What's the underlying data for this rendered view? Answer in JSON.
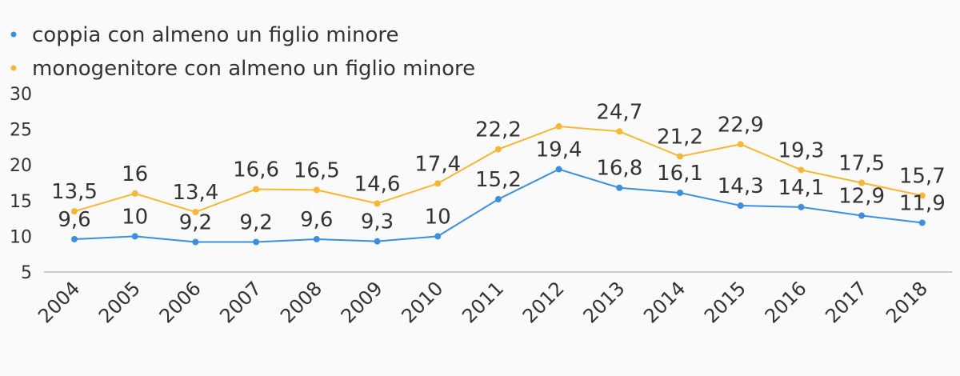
{
  "chart_data": {
    "type": "line",
    "categories": [
      "2004",
      "2005",
      "2006",
      "2007",
      "2008",
      "2009",
      "2010",
      "2011",
      "2012",
      "2013",
      "2014",
      "2015",
      "2016",
      "2017",
      "2018"
    ],
    "series": [
      {
        "name": "coppia con almeno un figlio minore",
        "color": "#3b8fe0",
        "values": [
          9.6,
          10,
          9.2,
          9.2,
          9.6,
          9.3,
          10,
          15.2,
          19.4,
          16.8,
          16.1,
          14.3,
          14.1,
          12.9,
          11.9
        ],
        "labels": [
          "9,6",
          "10",
          "9,2",
          "9,2",
          "9,6",
          "9,3",
          "10",
          "15,2",
          "19,4",
          "16,8",
          "16,1",
          "14,3",
          "14,1",
          "12,9",
          "11,9"
        ]
      },
      {
        "name": "monogenitore con almeno un figlio minore",
        "color": "#f7b733",
        "values": [
          13.5,
          16,
          13.4,
          16.6,
          16.5,
          14.6,
          17.4,
          22.2,
          25.4,
          24.7,
          21.2,
          22.9,
          19.3,
          17.5,
          15.7
        ],
        "labels": [
          "13,5",
          "16",
          "13,4",
          "16,6",
          "16,5",
          "14,6",
          "17,4",
          "22,2",
          "",
          "24,7",
          "21,2",
          "22,9",
          "19,3",
          "17,5",
          "15,7"
        ]
      }
    ],
    "yticks": [
      "5",
      "10",
      "15",
      "20",
      "25",
      "30"
    ],
    "ylim": [
      5,
      30
    ],
    "legend_position": "top-left",
    "grid": false
  }
}
